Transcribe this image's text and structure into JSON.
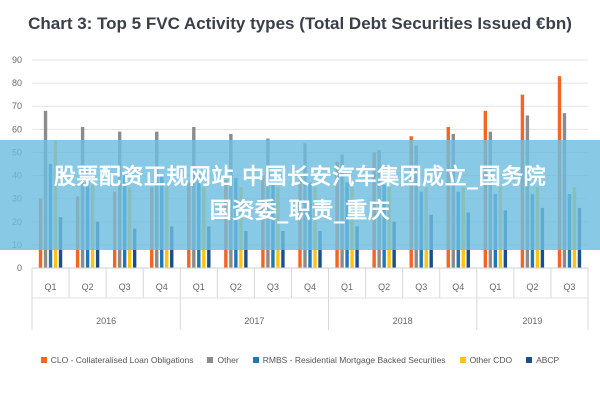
{
  "banner": {
    "line1": "股票配资正规网站 中国长安汽车集团成立_国务院",
    "line2": "国资委_职责_重庆"
  },
  "chart_data": {
    "type": "bar",
    "title": "Chart 3: Top 5 FVC Activity types (Total Debt Securities Issued €bn)",
    "xlabel": "",
    "ylabel": "",
    "ylim": [
      0,
      90
    ],
    "yticks": [
      0,
      10,
      20,
      30,
      40,
      50,
      60,
      70,
      80,
      90
    ],
    "grid": true,
    "legend_position": "bottom",
    "categories": [
      "Q1",
      "Q2",
      "Q3",
      "Q4",
      "Q1",
      "Q2",
      "Q3",
      "Q4",
      "Q1",
      "Q2",
      "Q3",
      "Q4",
      "Q1",
      "Q2",
      "Q3"
    ],
    "years": [
      {
        "label": "2016",
        "count": 4
      },
      {
        "label": "2017",
        "count": 4
      },
      {
        "label": "2018",
        "count": 4
      },
      {
        "label": "2019",
        "count": 3
      }
    ],
    "series": [
      {
        "name": "CLO - Collateralised Loan Obligations",
        "color": "#f26522",
        "values": [
          30,
          31,
          33,
          35,
          37,
          38,
          40,
          41,
          46,
          50,
          57,
          61,
          68,
          75,
          83
        ]
      },
      {
        "name": "Other",
        "color": "#8c8c8c",
        "values": [
          68,
          61,
          59,
          59,
          61,
          58,
          56,
          54,
          49,
          51,
          53,
          58,
          59,
          66,
          67
        ]
      },
      {
        "name": "RMBS - Residential Mortgage Backed Securities",
        "color": "#1f77b4",
        "values": [
          45,
          44,
          40,
          40,
          40,
          39,
          37,
          37,
          37,
          36,
          33,
          33,
          32,
          32,
          32
        ]
      },
      {
        "name": "Other CDO",
        "color": "#ffc20e",
        "values": [
          55,
          36,
          35,
          35,
          35,
          35,
          35,
          35,
          35,
          35,
          35,
          35,
          35,
          35,
          35
        ]
      },
      {
        "name": "ABCP",
        "color": "#1a4f8b",
        "values": [
          22,
          20,
          17,
          18,
          18,
          16,
          16,
          16,
          18,
          20,
          23,
          24,
          25,
          26,
          26
        ]
      }
    ]
  }
}
